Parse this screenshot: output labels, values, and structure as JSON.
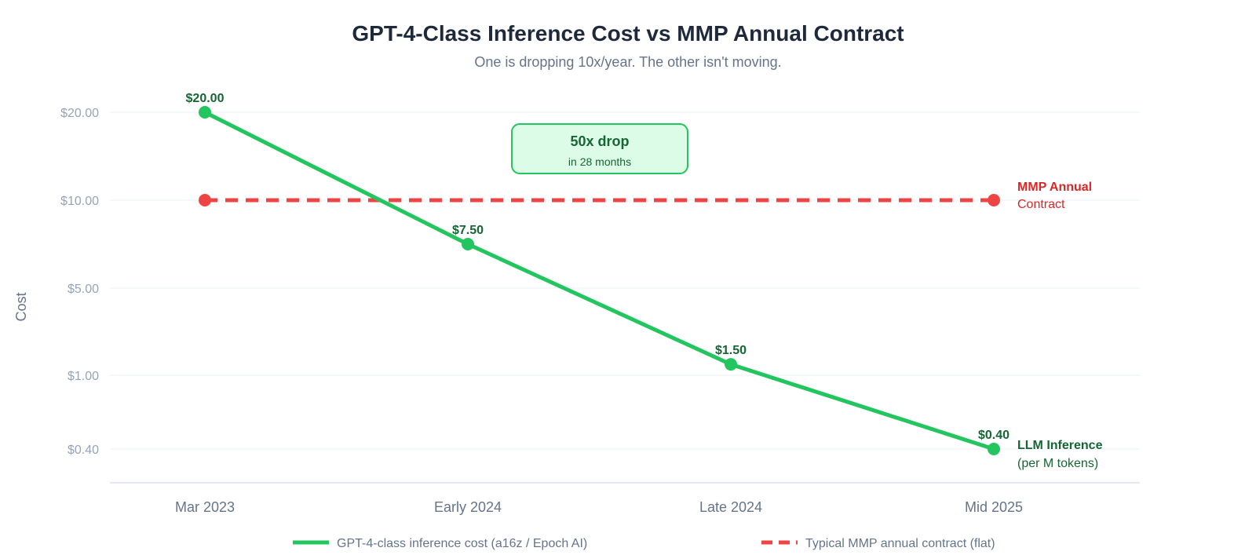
{
  "chart_data": {
    "type": "line",
    "title": "GPT-4-Class Inference Cost vs MMP Annual Contract",
    "subtitle": "One is dropping 10x/year. The other isn't moving.",
    "ylabel": "Cost",
    "xlabel": "",
    "categories": [
      "Mar 2023",
      "Early 2024",
      "Late 2024",
      "Mid 2025"
    ],
    "y_ticks": [
      20,
      10,
      5,
      1,
      0.4
    ],
    "y_tick_labels": [
      "$20.00",
      "$10.00",
      "$5.00",
      "$1.00",
      "$0.40"
    ],
    "grid": true,
    "legend_position": "bottom",
    "series": [
      {
        "name": "GPT-4-class inference cost (a16z / Epoch AI)",
        "values": [
          20,
          7.5,
          1.5,
          0.4
        ],
        "data_labels": [
          "$20.00",
          "$7.50",
          "$1.50",
          "$0.40"
        ],
        "end_label_bold": "LLM Inference",
        "end_label_regular": "(per M tokens)",
        "color": "#22c55e",
        "line_style": "solid"
      },
      {
        "name": "Typical MMP annual contract (flat)",
        "values": [
          10,
          10,
          10,
          10
        ],
        "end_label_bold": "MMP Annual",
        "end_label_regular": "Contract",
        "color": "#ef4444",
        "line_style": "dashed"
      }
    ],
    "annotation": {
      "title": "50x drop",
      "subtitle": "in 28 months"
    },
    "colors": {
      "green_text": "#166534",
      "red_text": "#dc2626",
      "annotation_fill": "#dcfce7",
      "annotation_stroke": "#22c55e",
      "grid": "#f1f5f9",
      "axis": "#e2e8f0"
    }
  }
}
